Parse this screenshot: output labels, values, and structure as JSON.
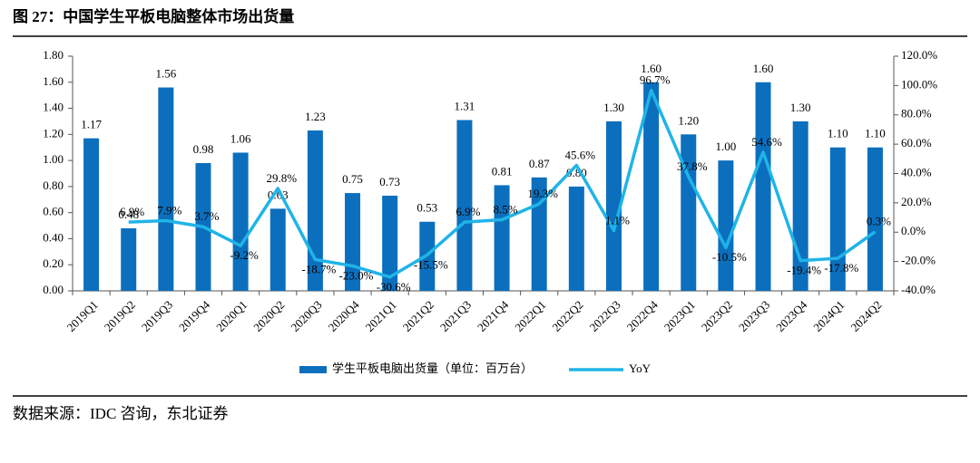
{
  "chart_data": {
    "type": "bar_line",
    "title": "图 27：中国学生平板电脑整体市场出货量",
    "source": "数据来源：IDC 咨询，东北证券",
    "categories": [
      "2019Q1",
      "2019Q2",
      "2019Q3",
      "2019Q4",
      "2020Q1",
      "2020Q2",
      "2020Q3",
      "2020Q4",
      "2021Q1",
      "2021Q2",
      "2021Q3",
      "2021Q4",
      "2022Q1",
      "2022Q2",
      "2022Q3",
      "2022Q4",
      "2023Q1",
      "2023Q2",
      "2023Q3",
      "2023Q4",
      "2024Q1",
      "2024Q2"
    ],
    "series": [
      {
        "name": "学生平板电脑出货量（单位：百万台）",
        "type": "bar",
        "color": "#0b6fbd",
        "values": [
          1.17,
          0.48,
          1.56,
          0.98,
          1.06,
          0.63,
          1.23,
          0.75,
          0.73,
          0.53,
          1.31,
          0.81,
          0.87,
          0.8,
          1.3,
          1.6,
          1.2,
          1.0,
          1.6,
          1.3,
          1.1,
          1.1
        ],
        "value_labels": [
          "1.17",
          "0.48",
          "1.56",
          "0.98",
          "1.06",
          "0.63",
          "1.23",
          "0.75",
          "0.73",
          "0.53",
          "1.31",
          "0.81",
          "0.87",
          "0.80",
          "1.30",
          "1.60",
          "1.20",
          "1.00",
          "1.60",
          "1.30",
          "1.10",
          "1.10"
        ]
      },
      {
        "name": "YoY",
        "type": "line",
        "axis": "y2",
        "color": "#1fb4e8",
        "values": [
          null,
          6.9,
          7.9,
          3.7,
          -9.2,
          29.8,
          -18.7,
          -23.0,
          -30.6,
          -15.5,
          6.9,
          8.5,
          19.3,
          45.6,
          1.1,
          96.7,
          37.8,
          -10.5,
          54.6,
          -19.4,
          -17.8,
          0.3
        ],
        "value_labels": [
          null,
          "6.9%",
          "7.9%",
          "3.7%",
          "-9.2%",
          "29.8%",
          "-18.7%",
          "-23.0%",
          "-30.6%",
          "-15.5%",
          "6.9%",
          "8.5%",
          "19.3%",
          "45.6%",
          "1.1%",
          "96.7%",
          "37.8%",
          "-10.5%",
          "54.6%",
          "-19.4%",
          "-17.8%",
          "0.3%"
        ]
      }
    ],
    "ylim": [
      0,
      1.8
    ],
    "yticks": [
      {
        "value": 0,
        "label": "0.00"
      },
      {
        "value": 0.2,
        "label": "0.20"
      },
      {
        "value": 0.4,
        "label": "0.40"
      },
      {
        "value": 0.6,
        "label": "0.60"
      },
      {
        "value": 0.8,
        "label": "0.80"
      },
      {
        "value": 1.0,
        "label": "1.00"
      },
      {
        "value": 1.2,
        "label": "1.20"
      },
      {
        "value": 1.4,
        "label": "1.40"
      },
      {
        "value": 1.6,
        "label": "1.60"
      },
      {
        "value": 1.8,
        "label": "1.80"
      }
    ],
    "y2lim": [
      -40,
      120
    ],
    "y2ticks": [
      {
        "value": -40,
        "label": "-40.0%"
      },
      {
        "value": -20,
        "label": "-20.0%"
      },
      {
        "value": 0,
        "label": "0.0%"
      },
      {
        "value": 20,
        "label": "20.0%"
      },
      {
        "value": 40,
        "label": "40.0%"
      },
      {
        "value": 60,
        "label": "60.0%"
      },
      {
        "value": 80,
        "label": "80.0%"
      },
      {
        "value": 100,
        "label": "100.0%"
      },
      {
        "value": 120,
        "label": "120.0%"
      }
    ],
    "grid": false,
    "legend": "bottom"
  }
}
